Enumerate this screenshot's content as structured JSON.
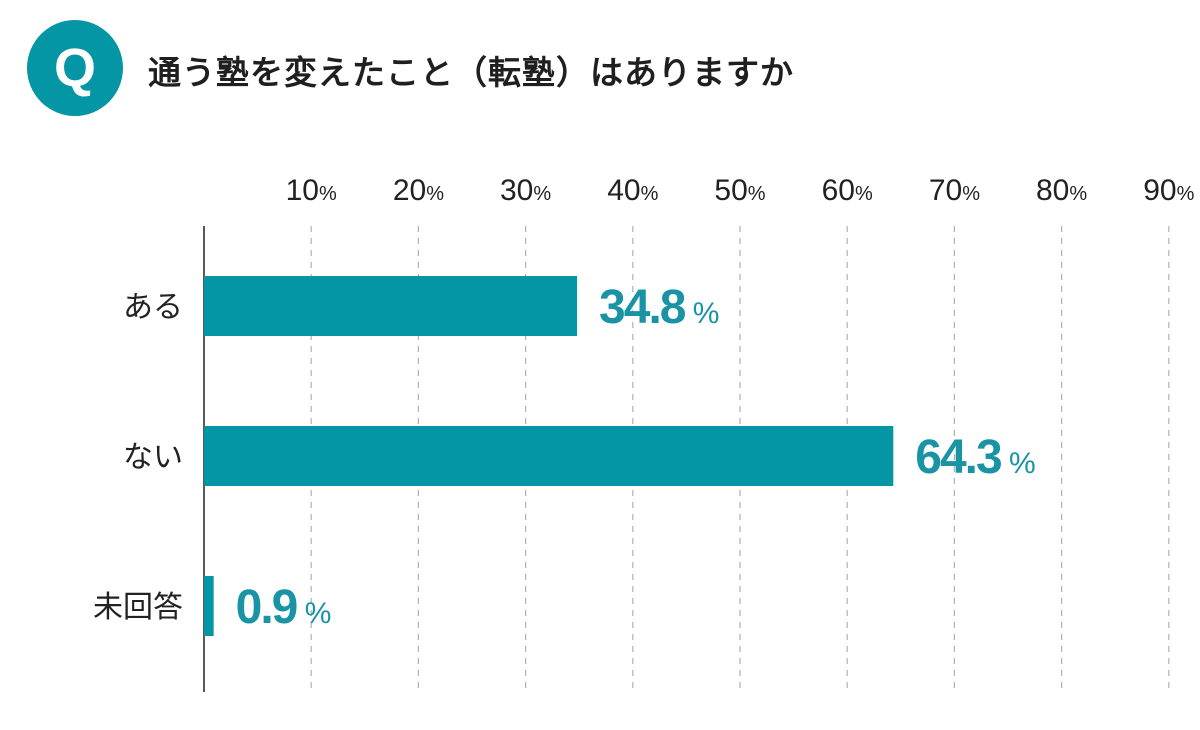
{
  "header": {
    "badge": "Q",
    "question": "通う塾を変えたこと（転塾）はありますか"
  },
  "colors": {
    "accent": "#0596a6",
    "bar": "#0596a6",
    "value_text": "#1a94a4",
    "axis": "#222222",
    "grid": "#b5b5b5"
  },
  "chart_data": {
    "type": "bar",
    "orientation": "horizontal",
    "title": "通う塾を変えたこと（転塾）はありますか",
    "categories": [
      "ある",
      "ない",
      "未回答"
    ],
    "values": [
      34.8,
      64.3,
      0.9
    ],
    "value_labels": [
      "34.8",
      "64.3",
      "0.9"
    ],
    "unit": "%",
    "xlim": [
      0,
      90
    ],
    "xticks": [
      10,
      20,
      30,
      40,
      50,
      60,
      70,
      80,
      90
    ],
    "tick_unit": "%",
    "grid": true,
    "xlabel": "",
    "ylabel": ""
  }
}
